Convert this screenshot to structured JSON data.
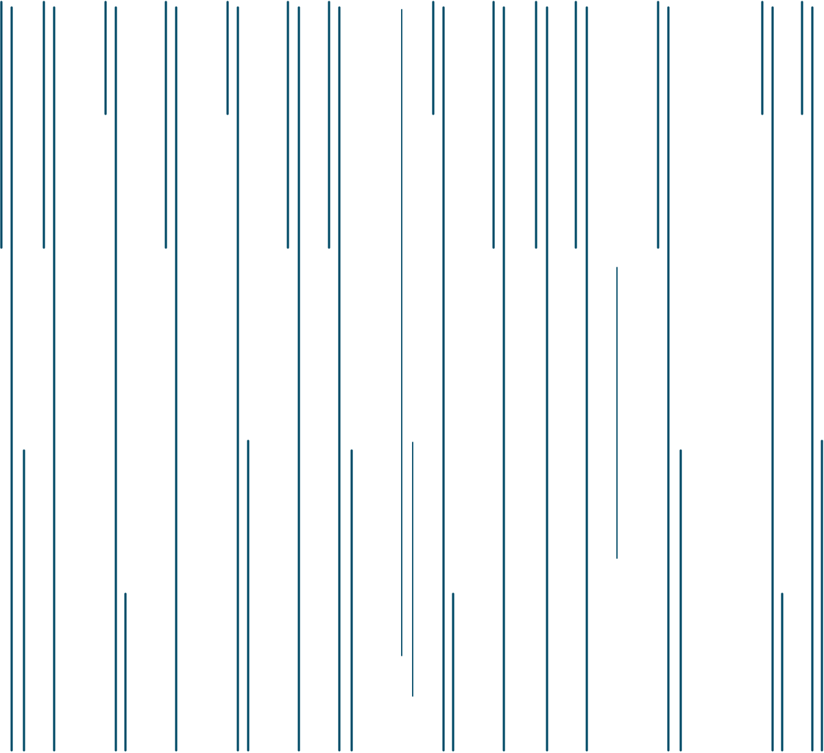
{
  "colors": {
    "background": "#ffffff",
    "line": "#004a66"
  }
}
